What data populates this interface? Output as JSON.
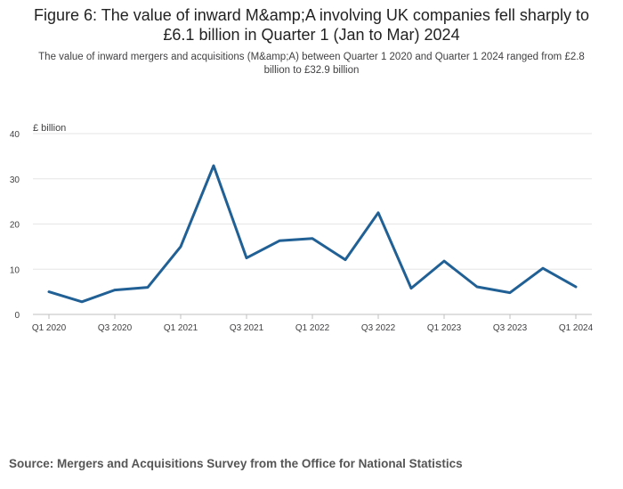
{
  "title": "Figure 6: The value of inward M&amp;A involving UK companies fell sharply to £6.1 billion in Quarter 1 (Jan to Mar) 2024",
  "subtitle": "The value of inward mergers and acquisitions (M&amp;A) between Quarter 1 2020 and Quarter 1 2024 ranged from £2.8 billion to £32.9 billion",
  "source": "Source: Mergers and Acquisitions Survey from the Office for National Statistics",
  "colors": {
    "line": "#206095",
    "grid": "#e6e6e6",
    "axis": "#bfbfbf",
    "text": "#414042"
  },
  "chart_data": {
    "type": "line",
    "title": "Figure 6: The value of inward M&amp;A involving UK companies fell sharply to £6.1 billion in Quarter 1 (Jan to Mar) 2024",
    "subtitle": "The value of inward mergers and acquisitions (M&amp;A) between Quarter 1 2020 and Quarter 1 2024 ranged from £2.8 billion to £32.9 billion",
    "xlabel": "",
    "ylabel": "£ billion",
    "categories": [
      "Q1 2020",
      "Q2 2020",
      "Q3 2020",
      "Q4 2020",
      "Q1 2021",
      "Q2 2021",
      "Q3 2021",
      "Q4 2021",
      "Q1 2022",
      "Q2 2022",
      "Q3 2022",
      "Q4 2022",
      "Q1 2023",
      "Q2 2023",
      "Q3 2023",
      "Q4 2023",
      "Q1 2024"
    ],
    "x_tick_labels": [
      "Q1 2020",
      "Q3 2020",
      "Q1 2021",
      "Q3 2021",
      "Q1 2022",
      "Q3 2022",
      "Q1 2023",
      "Q3 2023",
      "Q1 2024"
    ],
    "series": [
      {
        "values": [
          5.0,
          2.8,
          5.4,
          6.0,
          15.0,
          32.9,
          12.5,
          16.3,
          16.8,
          12.1,
          22.5,
          5.8,
          11.8,
          6.1,
          4.8,
          10.2,
          6.1
        ]
      }
    ],
    "ylim": [
      0,
      40
    ],
    "yticks": [
      0,
      10,
      20,
      30,
      40
    ],
    "grid": true,
    "legend": "none"
  }
}
